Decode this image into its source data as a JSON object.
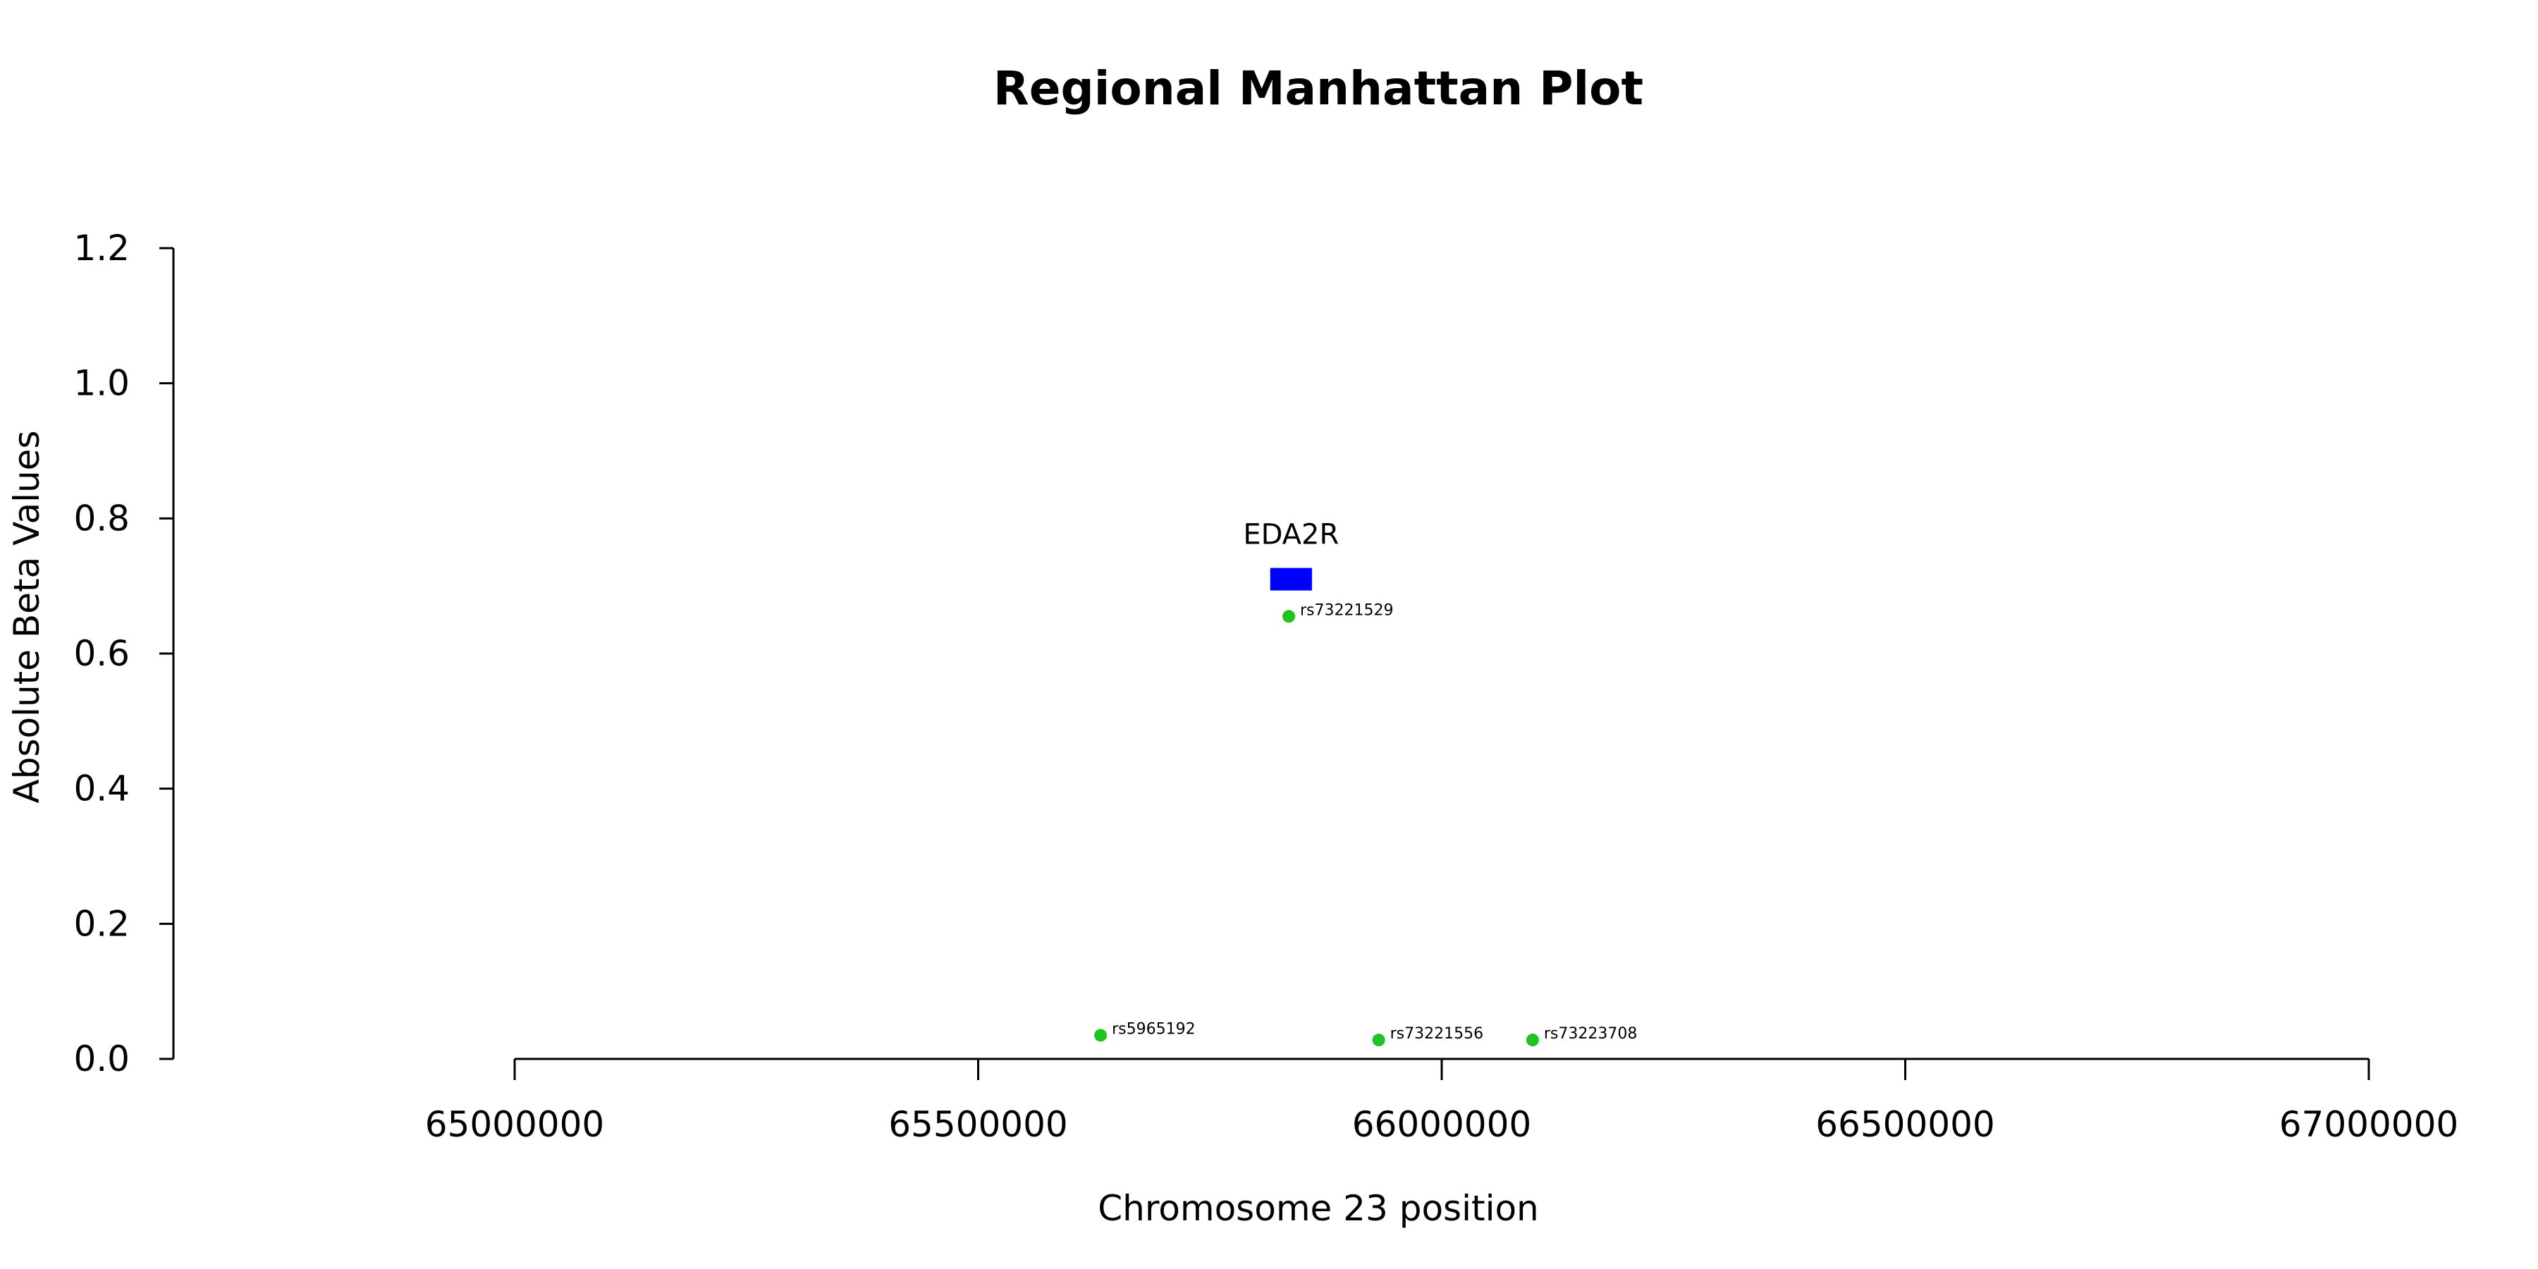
{
  "chart_data": {
    "type": "scatter",
    "title": "Regional Manhattan Plot",
    "xlabel": "Chromosome 23 position",
    "ylabel": "Absolute Beta Values",
    "xlim": [
      65000000,
      67000000
    ],
    "ylim": [
      0,
      1.2
    ],
    "x_ticks": [
      "65000000",
      "65500000",
      "66000000",
      "66500000",
      "67000000"
    ],
    "y_ticks": [
      "0.0",
      "0.2",
      "0.4",
      "0.6",
      "0.8",
      "1.0",
      "1.2"
    ],
    "grid": false,
    "point_color": "#1fc41f",
    "gene_color": "#0000ff",
    "points": [
      {
        "label": "rs73221529",
        "x": 65835000,
        "y": 0.655
      },
      {
        "label": "rs5965192",
        "x": 65632000,
        "y": 0.035
      },
      {
        "label": "rs73221556",
        "x": 65932000,
        "y": 0.028
      },
      {
        "label": "rs73223708",
        "x": 66098000,
        "y": 0.028
      }
    ],
    "genes": [
      {
        "name": "EDA2R",
        "start": 65815000,
        "end": 65860000,
        "y": 0.71
      }
    ]
  }
}
